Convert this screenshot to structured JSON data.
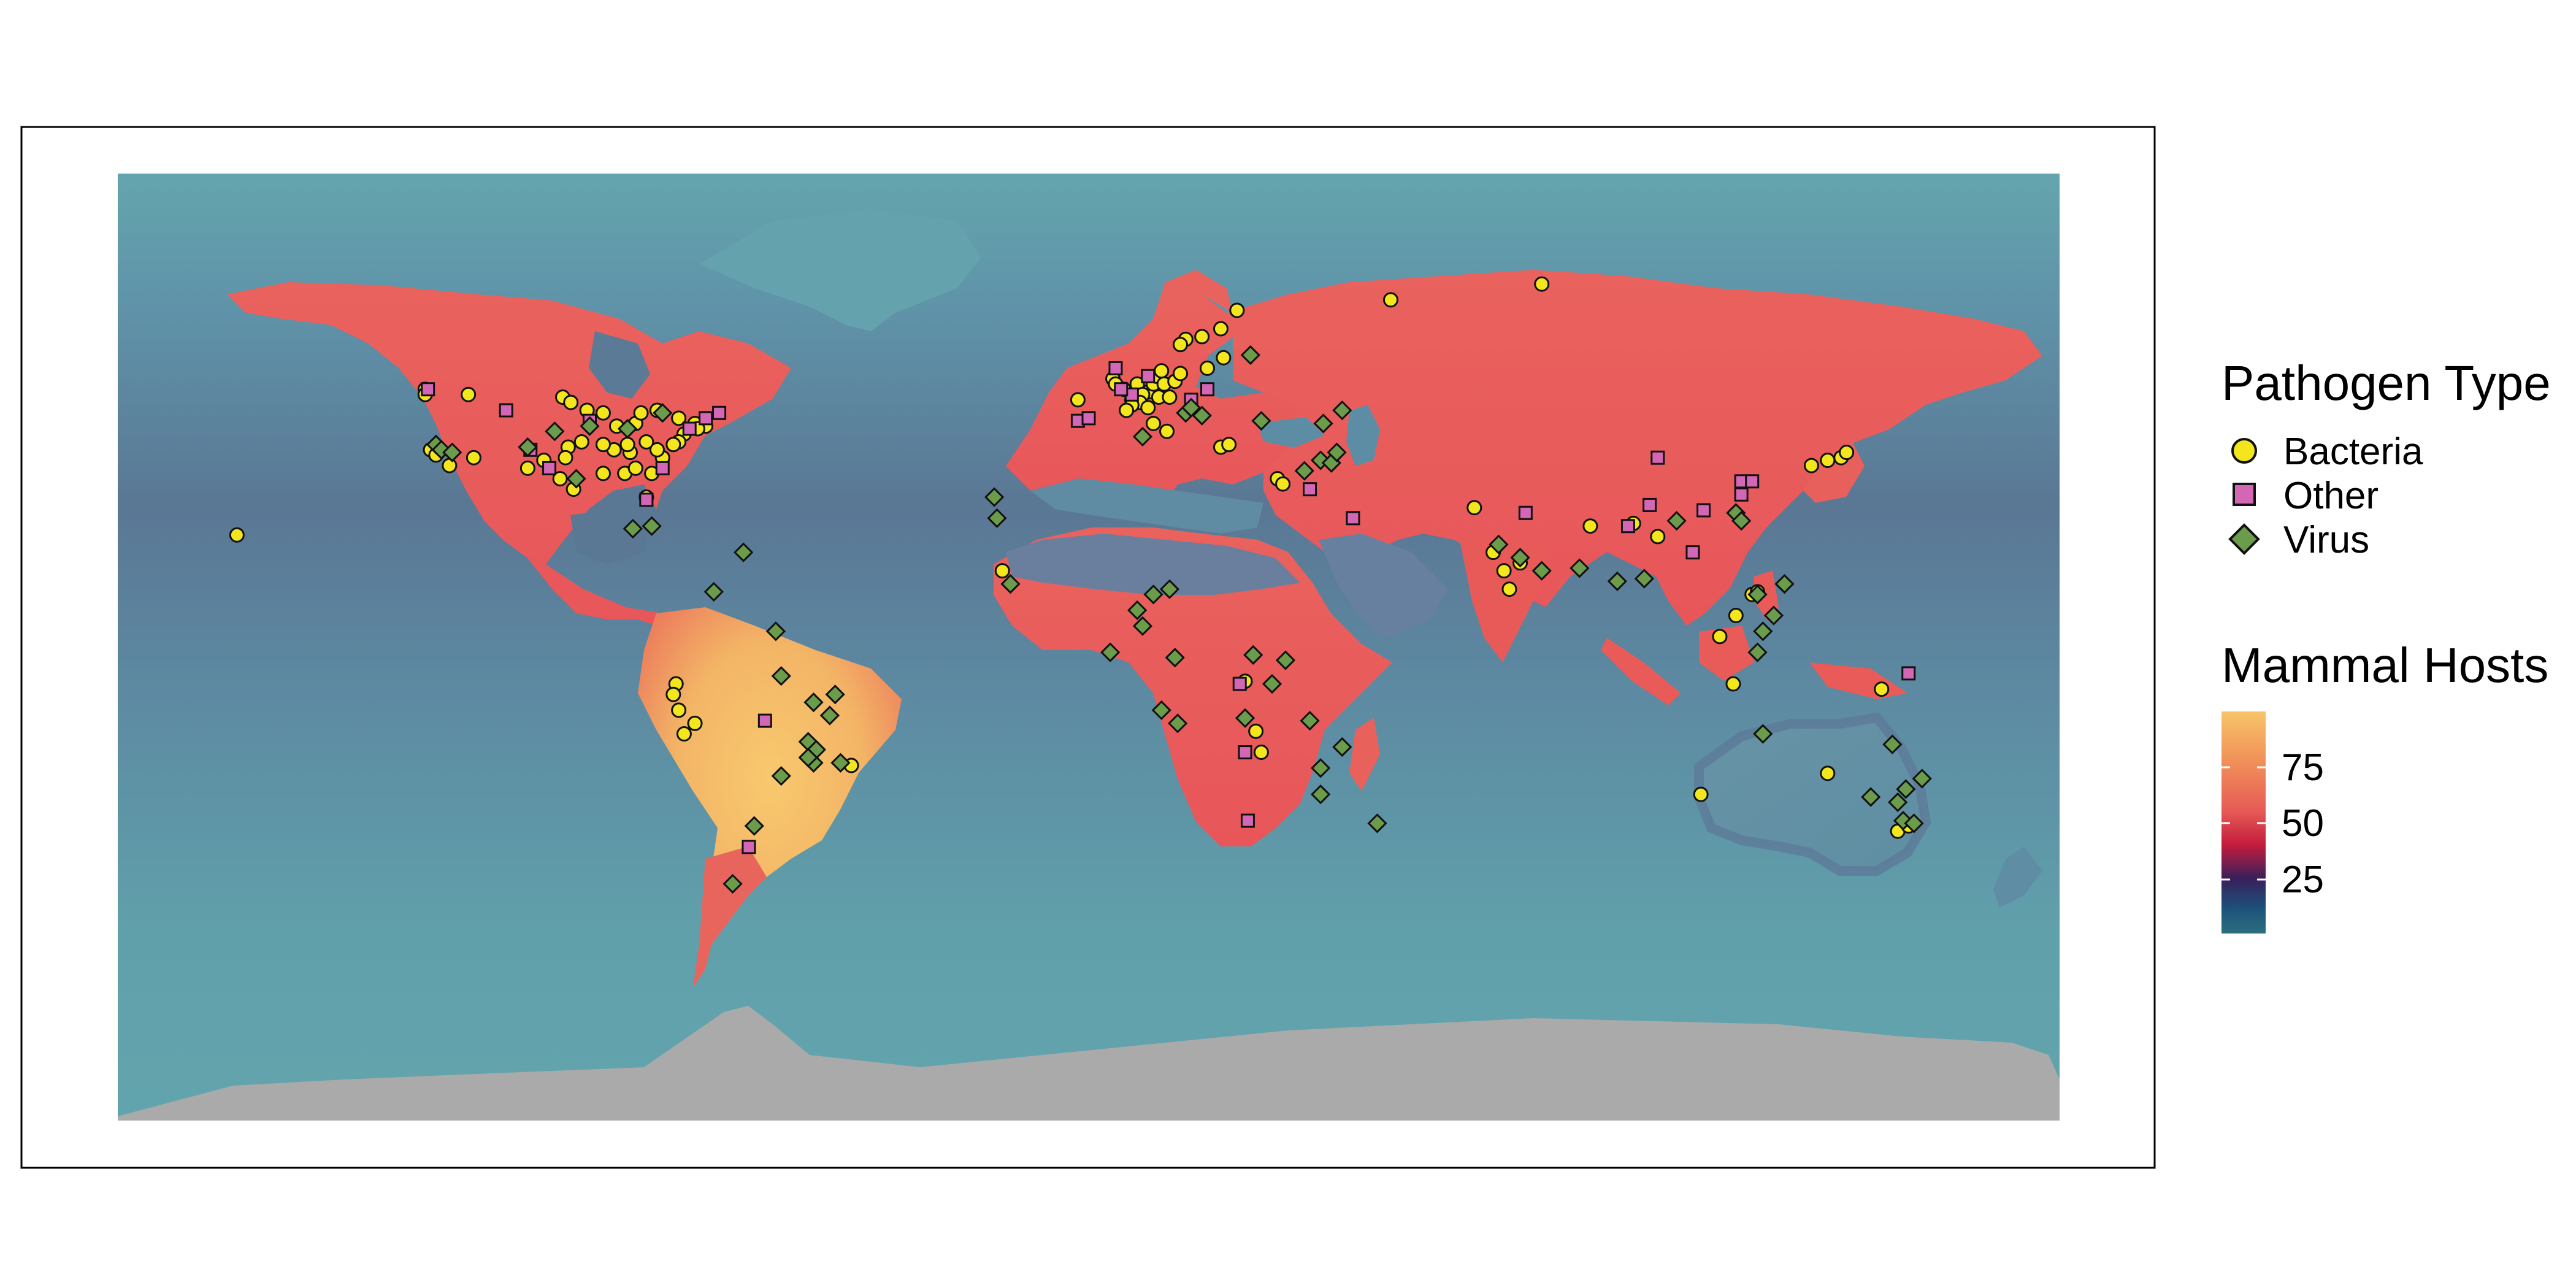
{
  "colors": {
    "ocean_low": "#5d8fa6",
    "ocean_high": "#62a4ad",
    "ocean_dark": "#5a7594",
    "antarctica": "#aaaaaa",
    "land_low": "#e86060",
    "land_mid": "#e85a55",
    "land_high": "#f5c06a",
    "bacteria": "#f4e61c",
    "other": "#d466b6",
    "virus": "#6a9c4c",
    "outline": "#111111"
  },
  "legend": {
    "pathogen_title": "Pathogen Type",
    "pathogen_items": [
      {
        "label": "Bacteria",
        "shape": "circle",
        "color": "#f4e61c"
      },
      {
        "label": "Other",
        "shape": "square",
        "color": "#d466b6"
      },
      {
        "label": "Virus",
        "shape": "diamond",
        "color": "#6a9c4c"
      }
    ],
    "hosts_title": "Mammal Hosts",
    "hosts_ticks": [
      "75",
      "50",
      "25"
    ],
    "hosts_scale": {
      "min": 0,
      "max": 100,
      "tick_values": [
        75,
        50,
        25
      ]
    },
    "hosts_gradient": [
      "#f7c468",
      "#f08a55",
      "#e85a5a",
      "#c41c3c",
      "#3a1f5a",
      "#1d4f79",
      "#2a6f7f"
    ]
  },
  "map": {
    "projection": "equirectangular",
    "lon_range": [
      -180,
      180
    ],
    "lat_range": [
      -90,
      90
    ]
  },
  "chart_data": {
    "type": "scatter",
    "x_name": "longitude",
    "y_name": "latitude",
    "series": [
      {
        "name": "Bacteria",
        "points": [
          [
            -157.9,
            21.3
          ],
          [
            -123.0,
            49.0
          ],
          [
            -123.0,
            48.0
          ],
          [
            -115.0,
            48.0
          ],
          [
            -122.0,
            37.5
          ],
          [
            -121.0,
            36.5
          ],
          [
            -118.5,
            34.5
          ],
          [
            -114.0,
            36.0
          ],
          [
            -97.5,
            47.5
          ],
          [
            -96.0,
            46.5
          ],
          [
            -93.0,
            45.0
          ],
          [
            -90.0,
            44.5
          ],
          [
            -87.5,
            42.0
          ],
          [
            -84.0,
            42.5
          ],
          [
            -83.0,
            44.5
          ],
          [
            -80.0,
            45.0
          ],
          [
            -76.0,
            43.5
          ],
          [
            -73.0,
            42.5
          ],
          [
            -71.0,
            42.0
          ],
          [
            -72.5,
            41.5
          ],
          [
            -75.0,
            40.5
          ],
          [
            -76.0,
            39.0
          ],
          [
            -77.0,
            38.5
          ],
          [
            -85.0,
            37.0
          ],
          [
            -88.0,
            37.5
          ],
          [
            -90.0,
            38.5
          ],
          [
            -94.0,
            39.0
          ],
          [
            -96.5,
            38.0
          ],
          [
            -97.0,
            36.0
          ],
          [
            -95.5,
            30.0
          ],
          [
            -98.0,
            32.0
          ],
          [
            -90.0,
            33.0
          ],
          [
            -86.0,
            33.0
          ],
          [
            -84.0,
            34.0
          ],
          [
            -82.0,
            28.5
          ],
          [
            -81.0,
            33.0
          ],
          [
            -79.0,
            36.0
          ],
          [
            -80.0,
            37.5
          ],
          [
            -82.0,
            39.0
          ],
          [
            -85.5,
            38.5
          ],
          [
            -101.0,
            35.5
          ],
          [
            -104.0,
            34.0
          ],
          [
            -76.5,
            -7.0
          ],
          [
            -77.0,
            -9.0
          ],
          [
            -76.0,
            -12.0
          ],
          [
            -73.0,
            -14.5
          ],
          [
            -75.0,
            -16.5
          ],
          [
            -44.0,
            -22.5
          ],
          [
            -16.0,
            14.5
          ],
          [
            -2.0,
            47.0
          ],
          [
            4.5,
            51.0
          ],
          [
            5.0,
            50.0
          ],
          [
            6.5,
            49.0
          ],
          [
            8.0,
            47.0
          ],
          [
            9.0,
            50.0
          ],
          [
            11.0,
            48.5
          ],
          [
            12.0,
            50.0
          ],
          [
            12.5,
            51.5
          ],
          [
            13.5,
            52.5
          ],
          [
            14.0,
            50.0
          ],
          [
            10.0,
            48.0
          ],
          [
            9.5,
            46.5
          ],
          [
            11.0,
            45.5
          ],
          [
            13.0,
            47.5
          ],
          [
            15.0,
            47.5
          ],
          [
            12.0,
            42.5
          ],
          [
            14.5,
            41.0
          ],
          [
            8.0,
            46.0
          ],
          [
            7.0,
            45.0
          ],
          [
            16.0,
            50.5
          ],
          [
            17.0,
            52.0
          ],
          [
            18.0,
            58.5
          ],
          [
            17.0,
            57.5
          ],
          [
            21.0,
            59.0
          ],
          [
            24.5,
            60.5
          ],
          [
            27.5,
            64.0
          ],
          [
            25.0,
            55.0
          ],
          [
            22.0,
            53.0
          ],
          [
            24.5,
            38.0
          ],
          [
            26.0,
            38.5
          ],
          [
            35.0,
            32.0
          ],
          [
            36.0,
            31.0
          ],
          [
            29.0,
            -6.5
          ],
          [
            31.0,
            -16.0
          ],
          [
            32.0,
            -20.0
          ],
          [
            56.0,
            66.0
          ],
          [
            84.0,
            69.0
          ],
          [
            75.0,
            18.0
          ],
          [
            77.0,
            14.5
          ],
          [
            78.0,
            11.0
          ],
          [
            71.5,
            26.5
          ],
          [
            80.0,
            16.0
          ],
          [
            93.0,
            23.0
          ],
          [
            101.0,
            23.5
          ],
          [
            105.5,
            21.0
          ],
          [
            120.0,
            6.0
          ],
          [
            123.0,
            10.0
          ],
          [
            124.0,
            10.5
          ],
          [
            117.0,
            2.0
          ],
          [
            119.5,
            -7.0
          ],
          [
            134.0,
            34.5
          ],
          [
            137.0,
            35.5
          ],
          [
            139.5,
            36.0
          ],
          [
            140.5,
            37.0
          ],
          [
            147.0,
            -8.0
          ],
          [
            137.0,
            -24.0
          ],
          [
            113.5,
            -28.0
          ],
          [
            150.0,
            -35.0
          ],
          [
            152.0,
            -34.0
          ]
        ]
      },
      {
        "name": "Other",
        "points": [
          [
            -122.5,
            49.0
          ],
          [
            -100.0,
            34.0
          ],
          [
            -82.0,
            28.0
          ],
          [
            -79.0,
            34.0
          ],
          [
            -74.0,
            41.5
          ],
          [
            -71.0,
            43.5
          ],
          [
            -68.5,
            44.5
          ],
          [
            -103.5,
            37.5
          ],
          [
            -108.0,
            45.0
          ],
          [
            -92.5,
            43.0
          ],
          [
            -60.0,
            -14.0
          ],
          [
            -63.0,
            -38.0
          ],
          [
            -2.0,
            43.0
          ],
          [
            0.0,
            43.5
          ],
          [
            5.0,
            53.0
          ],
          [
            8.0,
            48.0
          ],
          [
            11.0,
            51.5
          ],
          [
            6.0,
            49.0
          ],
          [
            19.0,
            47.0
          ],
          [
            22.0,
            49.0
          ],
          [
            28.0,
            -7.0
          ],
          [
            29.0,
            -20.0
          ],
          [
            29.5,
            -33.0
          ],
          [
            41.0,
            30.0
          ],
          [
            49.0,
            24.5
          ],
          [
            81.0,
            25.5
          ],
          [
            100.0,
            23.0
          ],
          [
            104.0,
            27.0
          ],
          [
            105.5,
            36.0
          ],
          [
            112.0,
            18.0
          ],
          [
            114.0,
            26.0
          ],
          [
            121.0,
            29.0
          ],
          [
            121.0,
            31.5
          ],
          [
            123.0,
            31.5
          ],
          [
            152.0,
            -5.0
          ]
        ]
      },
      {
        "name": "Virus",
        "points": [
          [
            -121.0,
            38.5
          ],
          [
            -120.0,
            37.5
          ],
          [
            -118.0,
            37.0
          ],
          [
            -104.0,
            38.0
          ],
          [
            -99.0,
            41.0
          ],
          [
            -92.5,
            42.0
          ],
          [
            -85.5,
            41.5
          ],
          [
            -79.0,
            44.5
          ],
          [
            -95.0,
            32.0
          ],
          [
            -84.5,
            22.5
          ],
          [
            -81.0,
            23.0
          ],
          [
            -69.5,
            10.5
          ],
          [
            -64.0,
            18.0
          ],
          [
            -58.0,
            3.0
          ],
          [
            -57.0,
            -5.5
          ],
          [
            -51.0,
            -10.5
          ],
          [
            -48.0,
            -13.0
          ],
          [
            -47.0,
            -9.0
          ],
          [
            -52.0,
            -18.0
          ],
          [
            -51.0,
            -22.0
          ],
          [
            -50.5,
            -19.5
          ],
          [
            -52.0,
            -21.0
          ],
          [
            -57.0,
            -24.5
          ],
          [
            -46.0,
            -22.0
          ],
          [
            -62.0,
            -34.0
          ],
          [
            -66.0,
            -45.0
          ],
          [
            -17.0,
            24.5
          ],
          [
            -17.5,
            28.5
          ],
          [
            -14.5,
            12.0
          ],
          [
            4.0,
            -1.0
          ],
          [
            10.0,
            4.0
          ],
          [
            9.0,
            7.0
          ],
          [
            12.0,
            10.0
          ],
          [
            15.0,
            11.0
          ],
          [
            16.0,
            -2.0
          ],
          [
            13.5,
            -12.0
          ],
          [
            16.5,
            -14.5
          ],
          [
            30.5,
            -1.5
          ],
          [
            29.0,
            -13.5
          ],
          [
            34.0,
            -7.0
          ],
          [
            36.5,
            -2.5
          ],
          [
            41.0,
            -14.0
          ],
          [
            43.0,
            -23.0
          ],
          [
            47.0,
            -19.0
          ],
          [
            53.5,
            -33.5
          ],
          [
            43.0,
            -28.0
          ],
          [
            10.0,
            40.0
          ],
          [
            21.0,
            44.0
          ],
          [
            18.0,
            44.5
          ],
          [
            19.0,
            45.5
          ],
          [
            32.0,
            43.0
          ],
          [
            40.0,
            33.5
          ],
          [
            43.0,
            35.5
          ],
          [
            45.0,
            35.0
          ],
          [
            46.0,
            37.0
          ],
          [
            43.5,
            42.5
          ],
          [
            47.0,
            45.0
          ],
          [
            30.0,
            55.5
          ],
          [
            76.0,
            19.5
          ],
          [
            80.0,
            17.0
          ],
          [
            84.0,
            14.5
          ],
          [
            91.0,
            15.0
          ],
          [
            98.0,
            12.5
          ],
          [
            103.0,
            13.0
          ],
          [
            109.0,
            24.0
          ],
          [
            120.0,
            25.5
          ],
          [
            121.0,
            24.0
          ],
          [
            124.0,
            10.0
          ],
          [
            127.0,
            6.0
          ],
          [
            129.0,
            12.0
          ],
          [
            125.0,
            3.0
          ],
          [
            124.0,
            -1.0
          ],
          [
            125.0,
            -16.5
          ],
          [
            149.0,
            -18.5
          ],
          [
            154.5,
            -25.0
          ],
          [
            145.0,
            -28.5
          ],
          [
            151.5,
            -27.0
          ],
          [
            150.0,
            -29.5
          ],
          [
            151.0,
            -33.0
          ],
          [
            153.0,
            -33.5
          ]
        ]
      }
    ]
  }
}
